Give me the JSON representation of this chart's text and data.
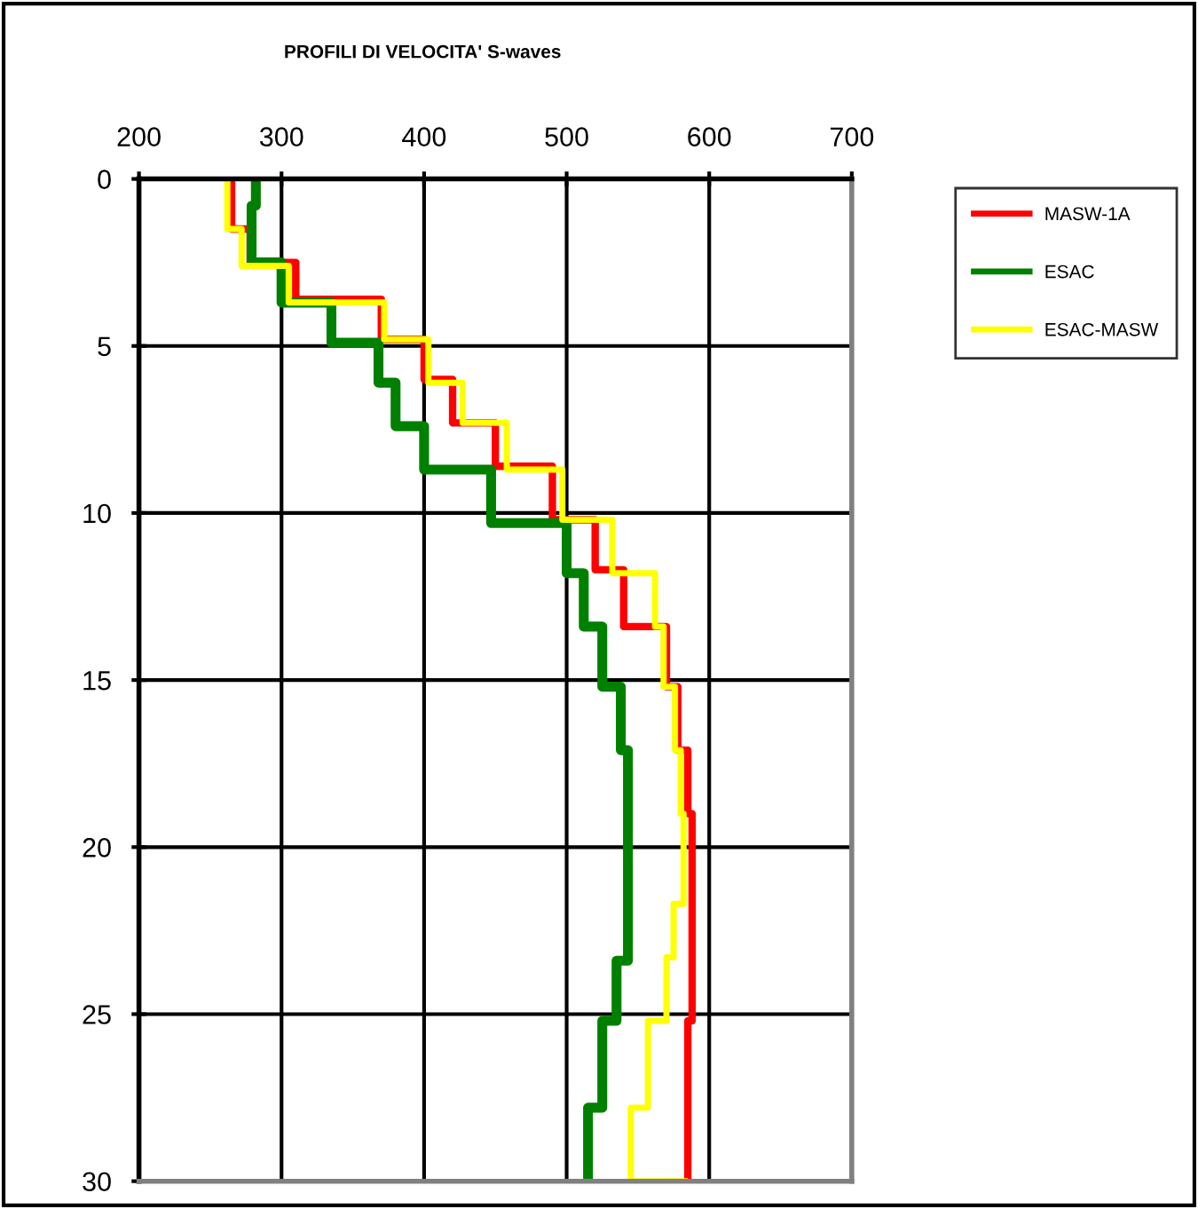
{
  "chart_data": {
    "type": "step",
    "title": "PROFILI DI VELOCITA' S-waves",
    "orientation": "horizontal",
    "xlim": [
      200,
      700
    ],
    "xticks": [
      200,
      300,
      400,
      500,
      600,
      700
    ],
    "ylim": [
      30,
      0
    ],
    "yticks": [
      0,
      5,
      10,
      15,
      20,
      25,
      30
    ],
    "grid": true,
    "legend": "top right",
    "series": [
      {
        "name": "MASW-1A",
        "color": "#ff0000",
        "x": [
          0,
          1.5,
          2.5,
          3.6,
          4.8,
          6.0,
          7.3,
          8.6,
          10.2,
          11.7,
          13.4,
          15.2,
          17.1,
          19.0,
          25.2,
          30
        ],
        "values": [
          265,
          278,
          310,
          370,
          400,
          420,
          450,
          490,
          520,
          540,
          570,
          578,
          585,
          588,
          585,
          585
        ]
      },
      {
        "name": "ESAC",
        "color": "#008000",
        "x": [
          0,
          0.8,
          2.5,
          3.7,
          4.9,
          6.1,
          7.4,
          8.7,
          10.3,
          11.8,
          13.4,
          15.2,
          17.1,
          23.4,
          25.2,
          27.8,
          30
        ],
        "values": [
          282,
          279,
          300,
          335,
          368,
          380,
          400,
          447,
          500,
          512,
          525,
          538,
          543,
          535,
          525,
          515,
          515
        ]
      },
      {
        "name": "ESAC-MASW",
        "color": "#ffff00",
        "x": [
          0,
          1.5,
          2.6,
          3.7,
          4.8,
          6.1,
          7.3,
          8.7,
          10.2,
          11.8,
          13.4,
          15.2,
          17.1,
          19.0,
          21.7,
          23.3,
          25.2,
          27.8,
          30
        ],
        "values": [
          262,
          272,
          305,
          372,
          403,
          427,
          458,
          497,
          532,
          562,
          568,
          576,
          580,
          582,
          575,
          570,
          557,
          545,
          585
        ]
      }
    ]
  }
}
